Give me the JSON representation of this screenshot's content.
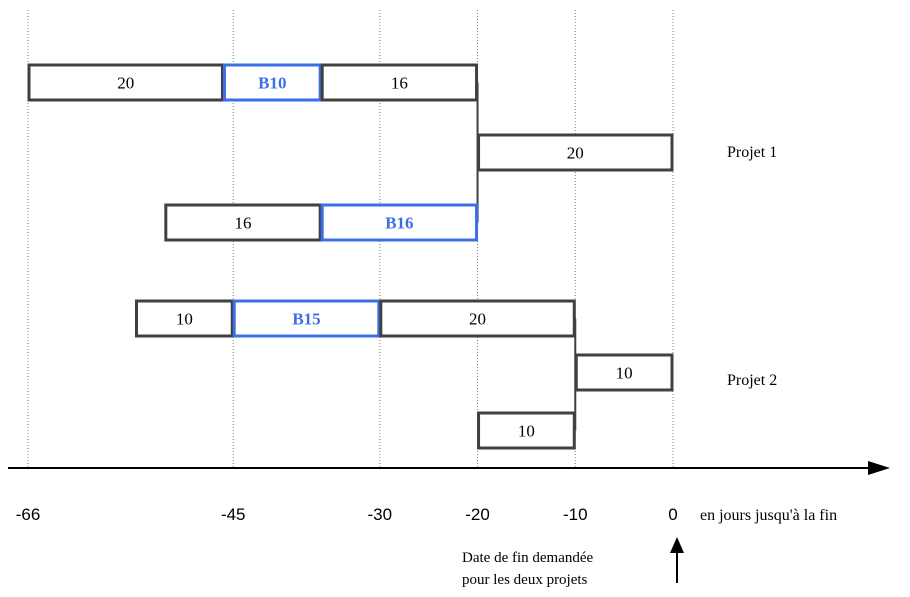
{
  "axis": {
    "ticks": [
      -66,
      -45,
      -30,
      -20,
      -10,
      0
    ],
    "unit_label": "en jours jusqu'à la fin",
    "range": [
      -66,
      0
    ]
  },
  "colors": {
    "task_border": "#404040",
    "buffer": "#3a6fe6",
    "guide": "#808080",
    "axis": "#000000"
  },
  "tasks": [
    {
      "id": "p1-a",
      "label": "20",
      "start": -66,
      "end": -46,
      "row": 0,
      "kind": "task"
    },
    {
      "id": "p1-b10",
      "label": "B10",
      "start": -46,
      "end": -36,
      "row": 0,
      "kind": "buffer"
    },
    {
      "id": "p1-b",
      "label": "16",
      "start": -36,
      "end": -20,
      "row": 0,
      "kind": "task"
    },
    {
      "id": "p1-c",
      "label": "20",
      "start": -20,
      "end": 0,
      "row": 1,
      "kind": "task"
    },
    {
      "id": "p1-d",
      "label": "16",
      "start": -52,
      "end": -36,
      "row": 2,
      "kind": "task"
    },
    {
      "id": "p1-b16",
      "label": "B16",
      "start": -36,
      "end": -20,
      "row": 2,
      "kind": "buffer"
    },
    {
      "id": "p2-a",
      "label": "10",
      "start": -55,
      "end": -45,
      "row": 3,
      "kind": "task"
    },
    {
      "id": "p2-b15",
      "label": "B15",
      "start": -45,
      "end": -30,
      "row": 3,
      "kind": "buffer"
    },
    {
      "id": "p2-b",
      "label": "20",
      "start": -30,
      "end": -10,
      "row": 3,
      "kind": "task"
    },
    {
      "id": "p2-c",
      "label": "10",
      "start": -10,
      "end": 0,
      "row": 4,
      "kind": "task"
    },
    {
      "id": "p2-d",
      "label": "10",
      "start": -20,
      "end": -10,
      "row": 5,
      "kind": "task"
    }
  ],
  "projects": [
    {
      "label": "Projet 1"
    },
    {
      "label": "Projet 2"
    }
  ],
  "note": {
    "line1": "Date de fin demandée",
    "line2": "pour les deux projets"
  }
}
